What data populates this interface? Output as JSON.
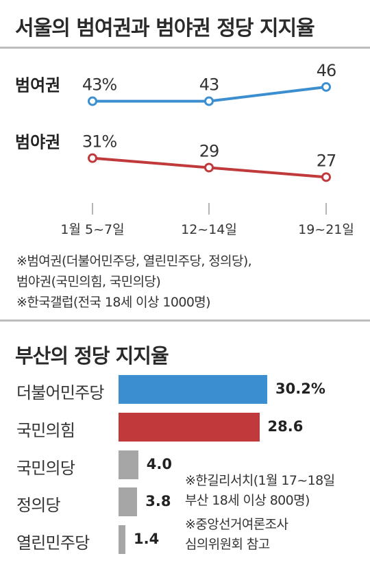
{
  "chart_data": [
    {
      "type": "line",
      "title": "서울의 범여권과 범야권 정당 지지율",
      "categories": [
        "1월 5~7일",
        "12~14일",
        "19~21일"
      ],
      "series": [
        {
          "name": "범여권",
          "values": [
            43,
            43,
            46
          ],
          "labels": [
            "43%",
            "43",
            "46"
          ],
          "color": "#3b8fd0"
        },
        {
          "name": "범야권",
          "values": [
            31,
            29,
            27
          ],
          "labels": [
            "31%",
            "29",
            "27"
          ],
          "color": "#c0393b"
        }
      ],
      "ylim": [
        23,
        48
      ],
      "grid": false,
      "notes": [
        "※범여권(더불어민주당, 열린민주당, 정의당),",
        "범야권(국민의힘, 국민의당)",
        "※한국갤럽(전국 18세 이상 1000명)"
      ]
    },
    {
      "type": "bar",
      "title": "부산의 정당 지지율",
      "categories": [
        "더불어민주당",
        "국민의힘",
        "국민의당",
        "정의당",
        "열린민주당"
      ],
      "values": [
        30.2,
        28.6,
        4.0,
        3.8,
        1.4
      ],
      "value_labels": [
        "30.2%",
        "28.6",
        "4.0",
        "3.8",
        "1.4"
      ],
      "colors": [
        "#3b8fd0",
        "#c0393b",
        "#a6a6a6",
        "#a6a6a6",
        "#a6a6a6"
      ],
      "xlim": [
        0,
        30.2
      ],
      "notes": [
        "※한길리서치(1월 17~18일",
        "부산 18세 이상 800명)",
        "※중앙선거여론조사",
        "심의위원회 참고"
      ]
    }
  ]
}
